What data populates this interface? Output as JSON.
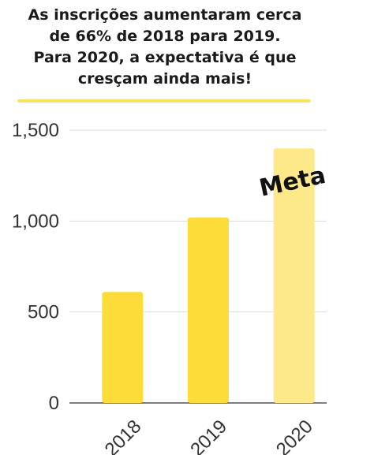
{
  "headline": {
    "lines": [
      "As inscrições aumentaram cerca",
      "de 66% de 2018 para 2019.",
      "Para 2020, a expectativa é que",
      "cresçam ainda mais!"
    ]
  },
  "colors": {
    "bar_actual": "#fddc3a",
    "bar_goal": "#fde98a",
    "accent_line": "#fbe05a"
  },
  "chart_data": {
    "type": "bar",
    "categories": [
      "2018",
      "2019",
      "2020"
    ],
    "values": [
      610,
      1020,
      1400
    ],
    "yticks": [
      "0",
      "500",
      "1,000",
      "1,500"
    ],
    "ytick_values": [
      0,
      500,
      1000,
      1500
    ],
    "ylim": [
      0,
      1500
    ],
    "grid": true,
    "annotation": {
      "text": "Meta",
      "category": "2020"
    }
  }
}
